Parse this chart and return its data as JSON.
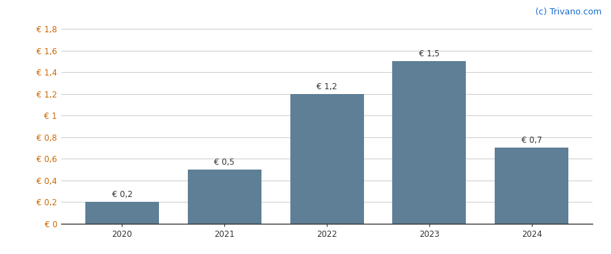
{
  "years": [
    "2020",
    "2021",
    "2022",
    "2023",
    "2024"
  ],
  "values": [
    0.2,
    0.5,
    1.2,
    1.5,
    0.7
  ],
  "bar_color": "#5e7f96",
  "bar_width": 0.72,
  "ylim": [
    0,
    1.88
  ],
  "yticks": [
    0,
    0.2,
    0.4,
    0.6,
    0.8,
    1.0,
    1.2,
    1.4,
    1.6,
    1.8
  ],
  "ytick_labels": [
    "€ 0",
    "€ 0,2",
    "€ 0,4",
    "€ 0,6",
    "€ 0,8",
    "€ 1",
    "€ 1,2",
    "€ 1,4",
    "€ 1,6",
    "€ 1,8"
  ],
  "bar_labels": [
    "€ 0,2",
    "€ 0,5",
    "€ 1,2",
    "€ 1,5",
    "€ 0,7"
  ],
  "watermark": "(c) Trivano.com",
  "watermark_color": "#1a6bcc",
  "background_color": "#ffffff",
  "grid_color": "#d0d0d0",
  "ytick_color": "#cc6600",
  "xtick_color": "#333333",
  "label_color": "#333333",
  "label_fontsize": 8.5,
  "tick_fontsize": 8.5,
  "watermark_fontsize": 9
}
